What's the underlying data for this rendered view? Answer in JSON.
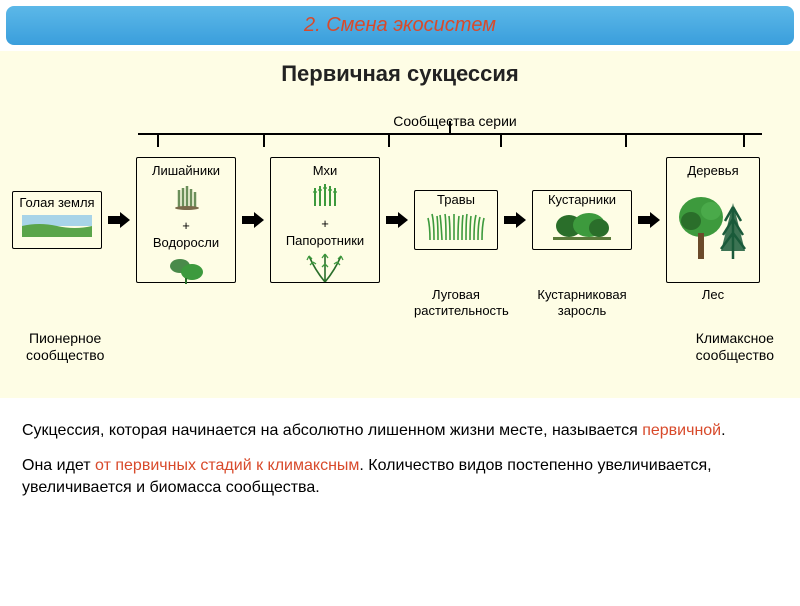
{
  "header": {
    "title": "2. Смена экосистем"
  },
  "subtitle": "Первичная сукцессия",
  "series_label": "Сообщества серии",
  "colors": {
    "header_bg_top": "#5cb8e8",
    "header_bg_bottom": "#3a9edc",
    "header_text": "#d84a2b",
    "diagram_bg": "#fefde5",
    "box_border": "#000000",
    "arrow_fill": "#000000",
    "highlight": "#d84a2b",
    "plant_green": "#3d9a3d",
    "plant_dark": "#2a6e2a",
    "ground_green": "#5aa54a",
    "sky_blue": "#a8d4e8"
  },
  "stages": [
    {
      "label": "Голая земля",
      "width": 90,
      "height": 58,
      "caption": ""
    },
    {
      "label_top": "Лишайники",
      "plus": "+",
      "label_bottom": "Водоросли",
      "width": 100,
      "height": 126,
      "caption": ""
    },
    {
      "label_top": "Мхи",
      "plus": "+",
      "label_bottom": "Папоротники",
      "width": 110,
      "height": 126,
      "caption": ""
    },
    {
      "label": "Травы",
      "width": 84,
      "height": 60,
      "caption": "Луговая растительность"
    },
    {
      "label": "Кустарники",
      "width": 100,
      "height": 60,
      "caption": "Кустарниковая заросль"
    },
    {
      "label": "Деревья",
      "width": 94,
      "height": 126,
      "caption": "Лес"
    }
  ],
  "bottom_left": "Пионерное сообщество",
  "bottom_right": "Климаксное сообщество",
  "paragraphs": [
    {
      "pre": "Сукцессия, которая начинается на абсолютно лишенном жизни месте, называется ",
      "hl": "первичной",
      "post": "."
    },
    {
      "pre": "Она идет ",
      "hl": "от первичных стадий к климаксным",
      "post": ". Количество видов постепенно увеличивается, увеличивается и биомасса сообщества."
    }
  ],
  "layout": {
    "bracket_ticks_pct": [
      3,
      20,
      40,
      58,
      78,
      97
    ],
    "arrow_w": 22,
    "arrow_h": 16
  }
}
